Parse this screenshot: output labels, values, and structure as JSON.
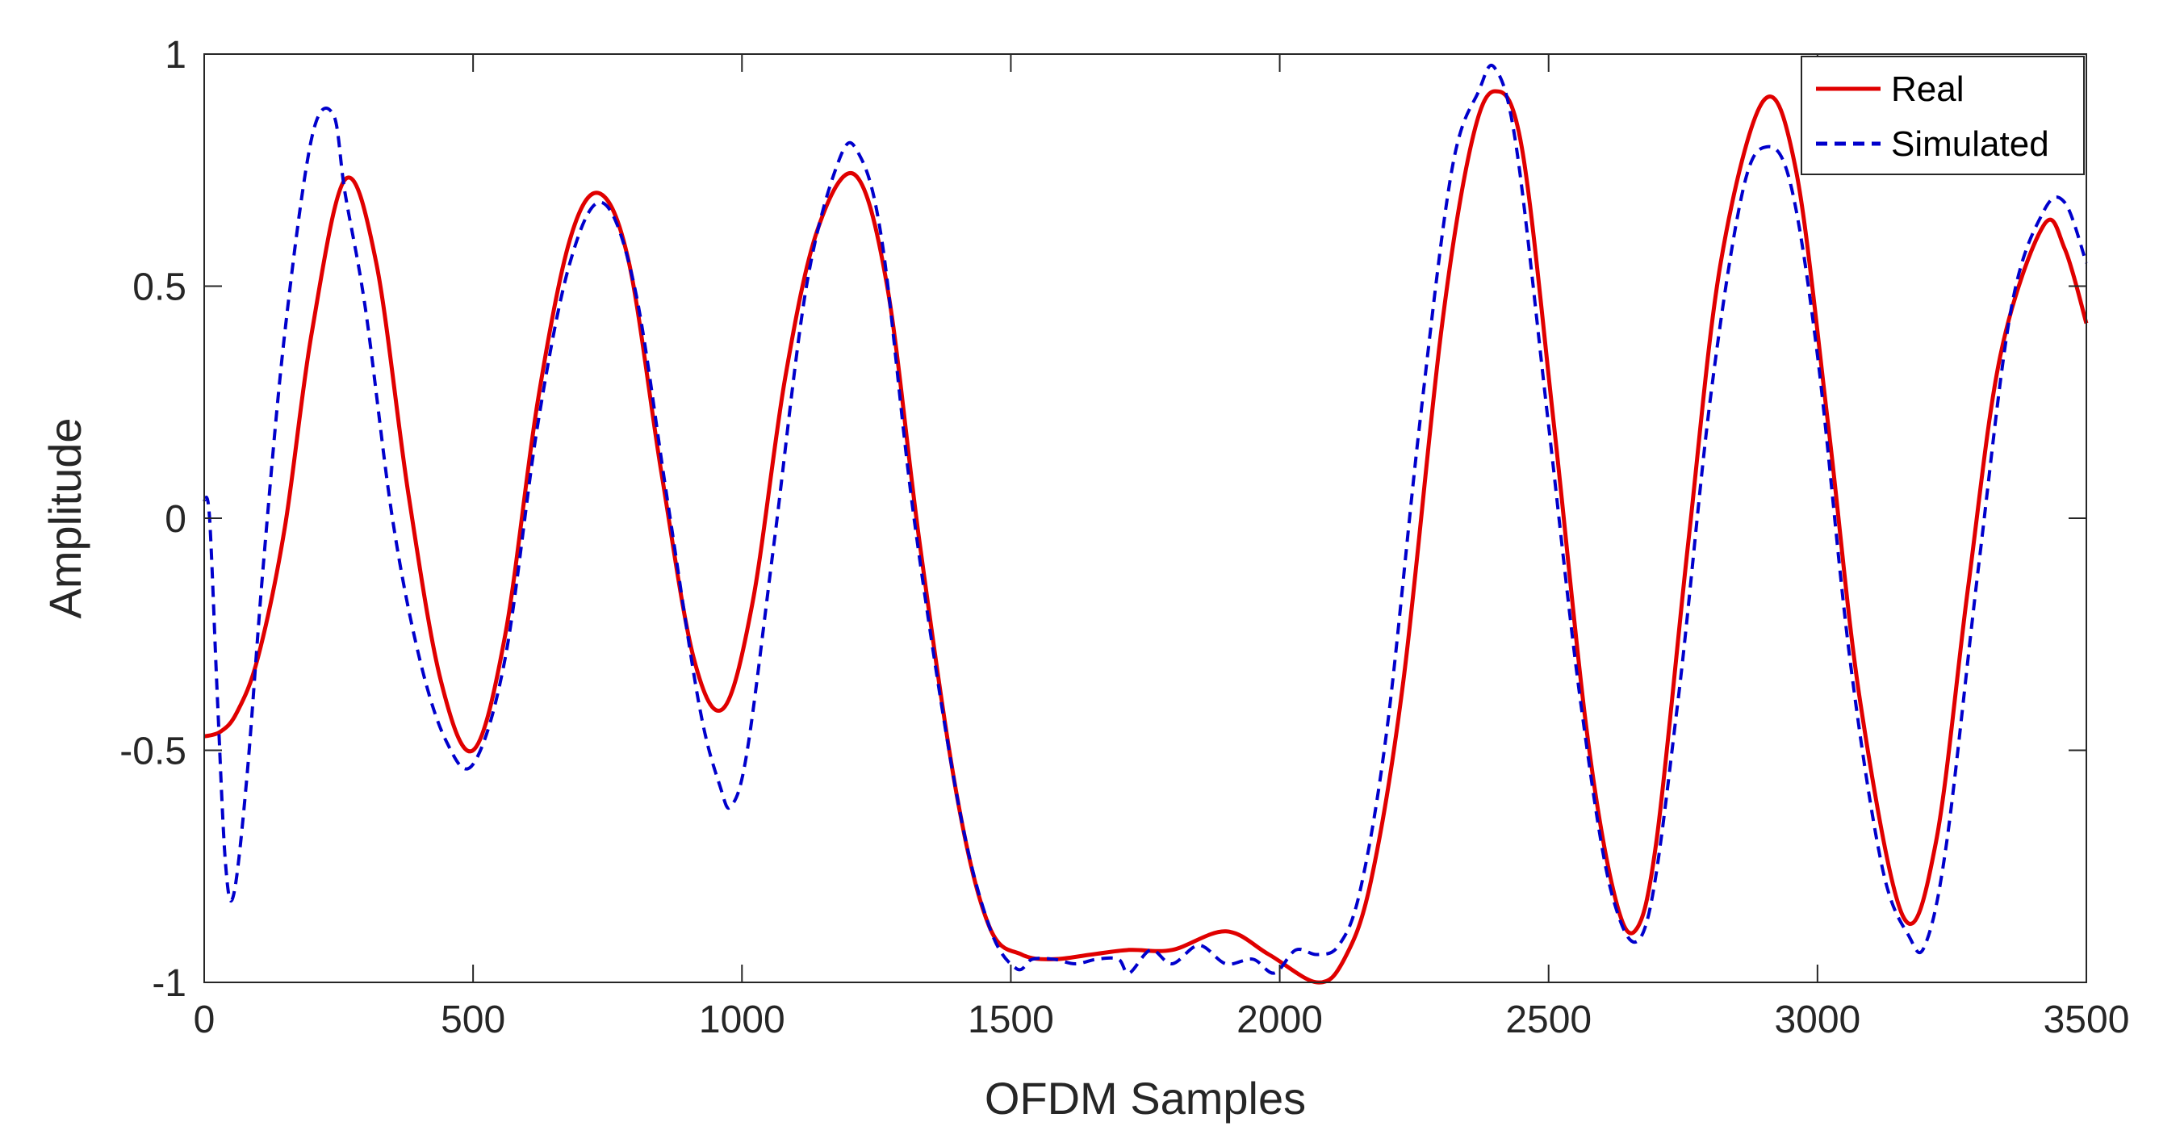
{
  "chart_data": {
    "type": "line",
    "title": "",
    "xlabel": "OFDM Samples",
    "ylabel": "Amplitude",
    "xlim": [
      0,
      3500
    ],
    "ylim": [
      -1,
      1
    ],
    "xticks": [
      0,
      500,
      1000,
      1500,
      2000,
      2500,
      3000,
      3500
    ],
    "yticks": [
      -1,
      -0.5,
      0,
      0.5,
      1
    ],
    "xtick_labels": [
      "0",
      "500",
      "1000",
      "1500",
      "2000",
      "2500",
      "3000",
      "3500"
    ],
    "ytick_labels": [
      "-1",
      "-0.5",
      "0",
      "0.5",
      "1"
    ],
    "grid": false,
    "legend_position": "top-right",
    "series": [
      {
        "name": "Real",
        "color": "#e00000",
        "style": "solid",
        "x": [
          0,
          30,
          60,
          100,
          150,
          200,
          262,
          320,
          380,
          440,
          500,
          560,
          620,
          680,
          735,
          790,
          850,
          910,
          965,
          1020,
          1080,
          1140,
          1210,
          1270,
          1330,
          1400,
          1460,
          1520,
          1580,
          1650,
          1720,
          1800,
          1900,
          1980,
          2070,
          2120,
          2170,
          2230,
          2300,
          2355,
          2400,
          2450,
          2510,
          2570,
          2620,
          2660,
          2700,
          2760,
          2820,
          2900,
          2960,
          3020,
          3080,
          3160,
          3220,
          3280,
          3340,
          3420,
          3460,
          3500
        ],
        "y": [
          -0.47,
          -0.46,
          -0.42,
          -0.3,
          -0.02,
          0.4,
          0.73,
          0.55,
          0.05,
          -0.35,
          -0.5,
          -0.25,
          0.25,
          0.6,
          0.7,
          0.55,
          0.1,
          -0.3,
          -0.41,
          -0.18,
          0.3,
          0.62,
          0.74,
          0.5,
          -0.05,
          -0.6,
          -0.88,
          -0.94,
          -0.95,
          -0.94,
          -0.93,
          -0.93,
          -0.89,
          -0.94,
          -1.0,
          -0.95,
          -0.78,
          -0.35,
          0.4,
          0.8,
          0.92,
          0.8,
          0.2,
          -0.45,
          -0.8,
          -0.89,
          -0.7,
          -0.05,
          0.55,
          0.9,
          0.75,
          0.2,
          -0.4,
          -0.86,
          -0.7,
          -0.15,
          0.35,
          0.63,
          0.58,
          0.42
        ]
      },
      {
        "name": "Simulated",
        "color": "#0000cc",
        "style": "dashed",
        "x": [
          0,
          10,
          25,
          40,
          55,
          80,
          110,
          150,
          200,
          240,
          262,
          300,
          350,
          400,
          450,
          500,
          560,
          620,
          680,
          740,
          800,
          860,
          920,
          960,
          980,
          1010,
          1060,
          1120,
          1180,
          1215,
          1260,
          1320,
          1400,
          1460,
          1510,
          1540,
          1580,
          1620,
          1660,
          1700,
          1720,
          1760,
          1800,
          1850,
          1900,
          1950,
          1990,
          2030,
          2070,
          2110,
          2150,
          2200,
          2260,
          2320,
          2370,
          2400,
          2440,
          2500,
          2560,
          2620,
          2680,
          2740,
          2800,
          2860,
          2905,
          2950,
          3000,
          3060,
          3120,
          3170,
          3200,
          3240,
          3300,
          3360,
          3420,
          3460,
          3500
        ],
        "y": [
          0.04,
          0.0,
          -0.4,
          -0.75,
          -0.81,
          -0.55,
          -0.1,
          0.4,
          0.82,
          0.87,
          0.7,
          0.45,
          0.0,
          -0.3,
          -0.48,
          -0.53,
          -0.3,
          0.2,
          0.55,
          0.68,
          0.5,
          0.05,
          -0.4,
          -0.58,
          -0.62,
          -0.5,
          -0.05,
          0.5,
          0.77,
          0.79,
          0.6,
          0.0,
          -0.6,
          -0.88,
          -0.97,
          -0.95,
          -0.95,
          -0.96,
          -0.95,
          -0.95,
          -0.98,
          -0.93,
          -0.96,
          -0.92,
          -0.96,
          -0.95,
          -0.98,
          -0.93,
          -0.94,
          -0.92,
          -0.8,
          -0.45,
          0.2,
          0.75,
          0.92,
          0.97,
          0.8,
          0.2,
          -0.4,
          -0.82,
          -0.88,
          -0.4,
          0.25,
          0.7,
          0.8,
          0.72,
          0.35,
          -0.3,
          -0.75,
          -0.9,
          -0.92,
          -0.7,
          -0.1,
          0.45,
          0.66,
          0.68,
          0.55
        ]
      }
    ]
  }
}
